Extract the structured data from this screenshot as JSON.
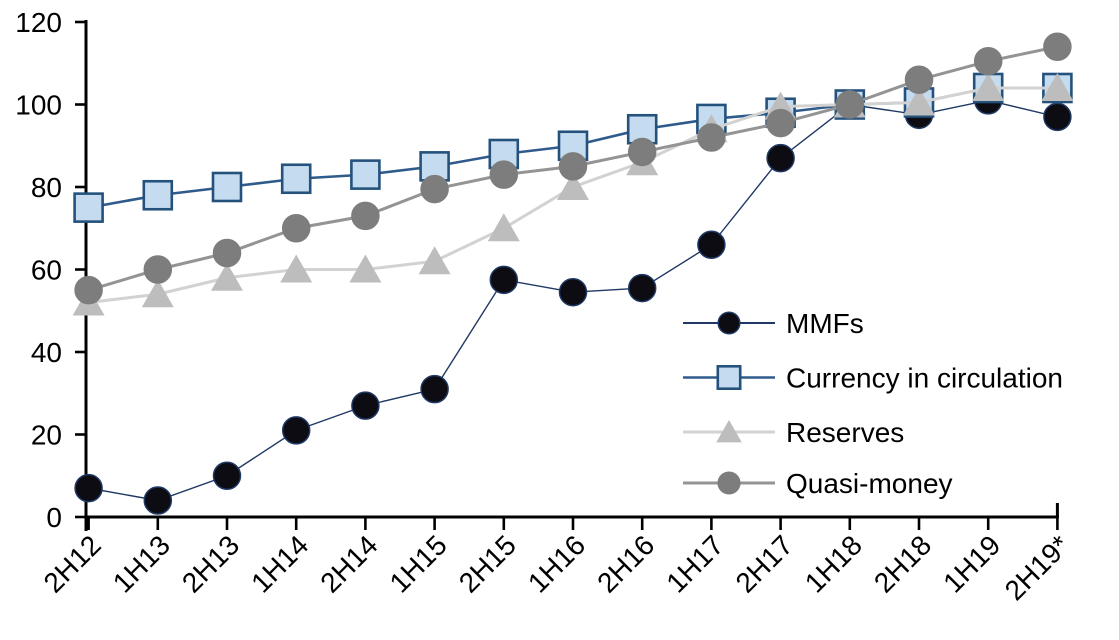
{
  "chart_data": {
    "type": "line",
    "categories": [
      "2H12",
      "1H13",
      "2H13",
      "1H14",
      "2H14",
      "1H15",
      "2H15",
      "1H16",
      "2H16",
      "1H17",
      "2H17",
      "1H18",
      "2H18",
      "1H19",
      "2H19*"
    ],
    "series": [
      {
        "name": "MMFs",
        "marker": "circle",
        "line_color": "#1f3864",
        "line_width": 1.4,
        "marker_fill": "#0c0c12",
        "marker_edge": "#1f3864",
        "values": [
          7,
          4,
          10,
          21,
          27,
          31,
          57.5,
          54.5,
          55.5,
          66,
          87,
          100,
          97.5,
          101,
          97
        ]
      },
      {
        "name": "Currency in circulation",
        "marker": "square",
        "line_color": "#2e5b8c",
        "line_width": 2.6,
        "marker_fill": "#c5dcf0",
        "marker_edge": "#24527d",
        "values": [
          75,
          78,
          80,
          82,
          83,
          85,
          88,
          90,
          94,
          96.5,
          98,
          100,
          100.5,
          104,
          104
        ]
      },
      {
        "name": "Reserves",
        "marker": "triangle",
        "line_color": "#d2d2d2",
        "line_width": 3,
        "marker_fill": "#bdbdbd",
        "marker_edge": "#bdbdbd",
        "values": [
          52,
          54,
          58,
          60,
          60,
          62,
          70,
          80,
          86,
          94,
          99.5,
          100,
          100.5,
          104,
          104
        ]
      },
      {
        "name": "Quasi-money",
        "marker": "circle",
        "line_color": "#949494",
        "line_width": 3,
        "marker_fill": "#7d7d7d",
        "marker_edge": "#7d7d7d",
        "values": [
          55,
          60,
          64,
          70,
          73,
          79.5,
          83,
          85,
          88.5,
          92,
          95.5,
          100,
          106,
          110.5,
          114
        ]
      }
    ],
    "ylim": [
      0,
      120
    ],
    "yticks": [
      0,
      20,
      40,
      60,
      80,
      100,
      120
    ],
    "legend_position": "inside-right",
    "grid": false,
    "x_tick_rotation": -45,
    "axis_color": "#000000"
  }
}
